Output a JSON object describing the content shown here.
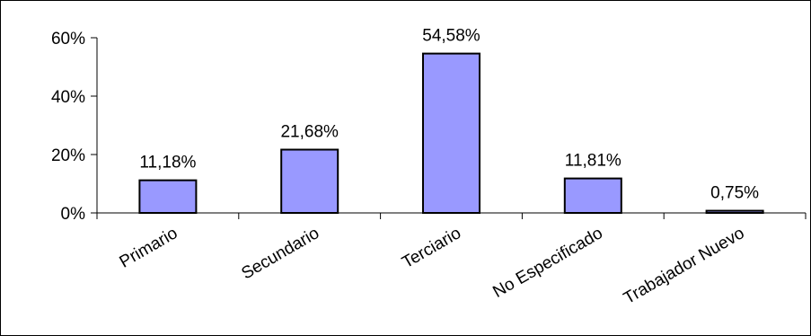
{
  "chart_data": {
    "type": "bar",
    "categories": [
      "Primario",
      "Secundario",
      "Terciario",
      "No Especificado",
      "Trabajador Nuevo"
    ],
    "values": [
      11.18,
      21.68,
      54.58,
      11.81,
      0.75
    ],
    "data_labels": [
      "11,18%",
      "21,68%",
      "54,58%",
      "11,81%",
      "0,75%"
    ],
    "y_ticks": [
      0,
      20,
      40,
      60
    ],
    "y_tick_labels": [
      "0%",
      "20%",
      "40%",
      "60%"
    ],
    "ylim": [
      0,
      60
    ],
    "xlabel": "",
    "ylabel": "",
    "grid": false,
    "legend": "none",
    "colors": {
      "bar_fill": "#9999ff",
      "bar_stroke": "#000000",
      "axis": "#000000",
      "background": "#ffffff",
      "border": "#000000"
    }
  }
}
